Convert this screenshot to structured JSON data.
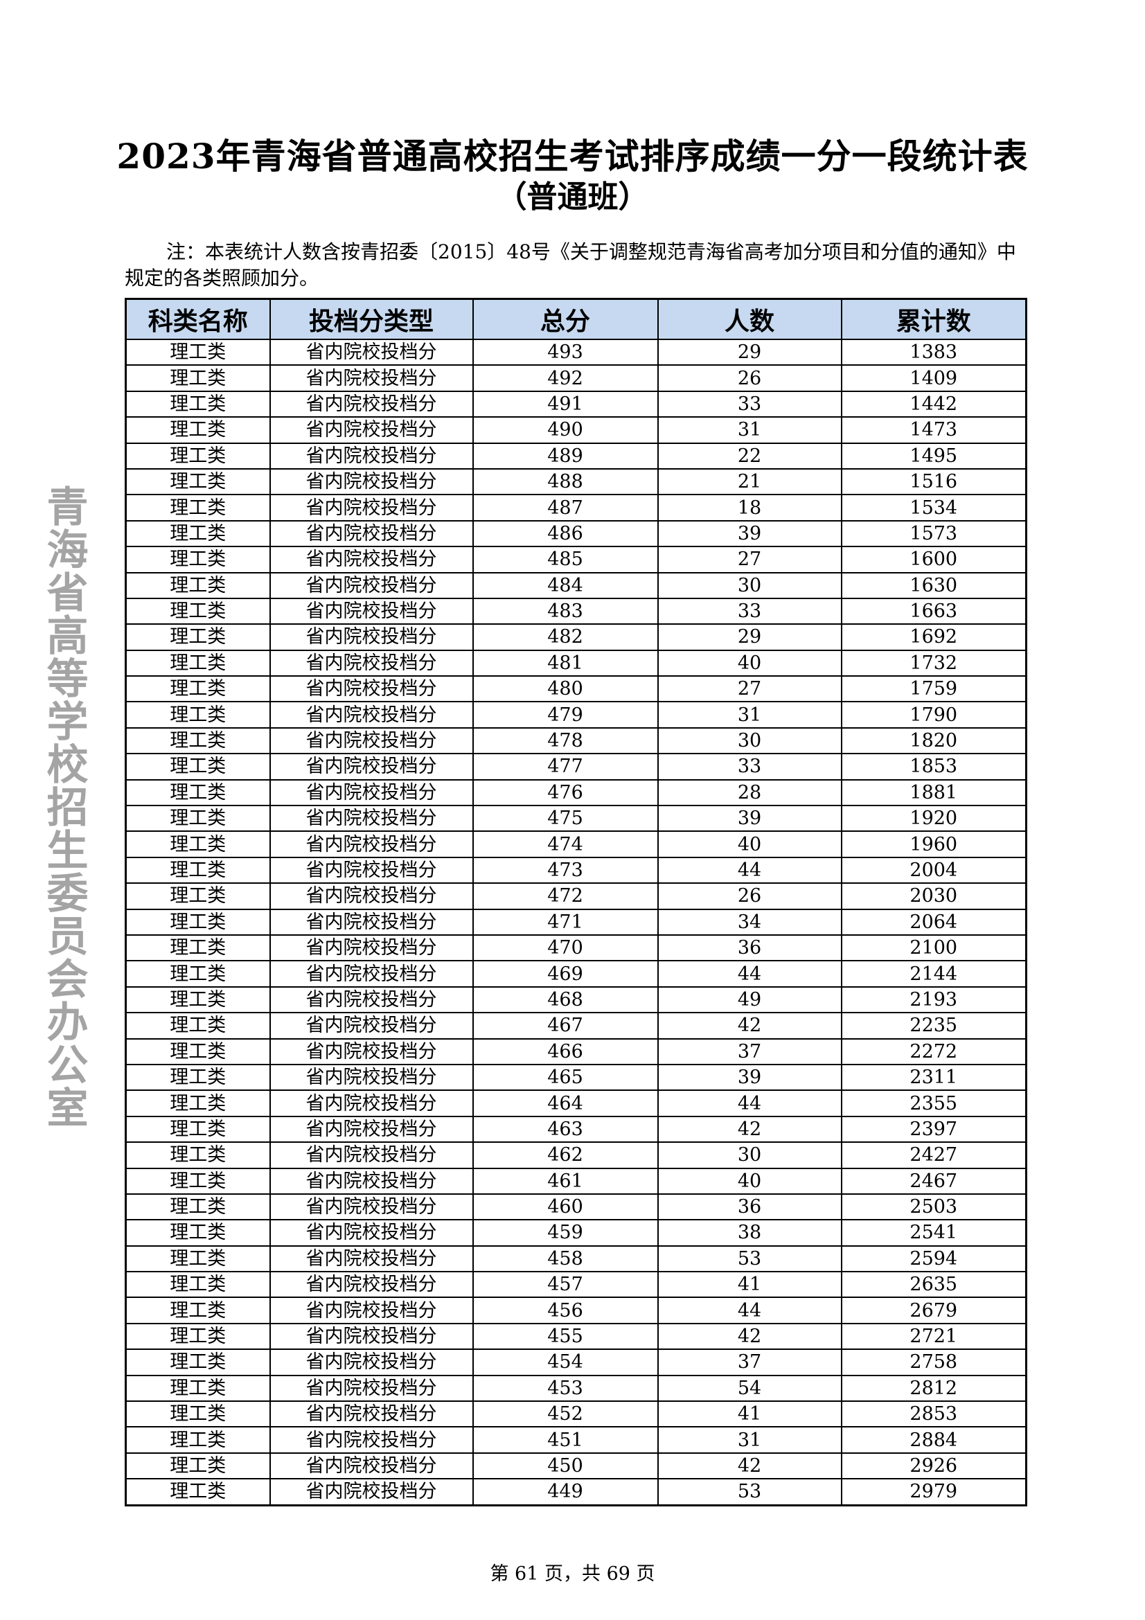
{
  "title": "2023年青海省普通高校招生考试排序成绩一分一段统计表",
  "subtitle": "（普通班）",
  "note": "注：本表统计人数含按青招委〔2015〕48号《关于调整规范青海省高考加分项目和分值的通知》中规定的各类照顾加分。",
  "table": {
    "headers": [
      "科类名称",
      "投档分类型",
      "总分",
      "人数",
      "累计数"
    ],
    "header_bg": "#c6d9f0",
    "rows": [
      [
        "理工类",
        "省内院校投档分",
        "493",
        "29",
        "1383"
      ],
      [
        "理工类",
        "省内院校投档分",
        "492",
        "26",
        "1409"
      ],
      [
        "理工类",
        "省内院校投档分",
        "491",
        "33",
        "1442"
      ],
      [
        "理工类",
        "省内院校投档分",
        "490",
        "31",
        "1473"
      ],
      [
        "理工类",
        "省内院校投档分",
        "489",
        "22",
        "1495"
      ],
      [
        "理工类",
        "省内院校投档分",
        "488",
        "21",
        "1516"
      ],
      [
        "理工类",
        "省内院校投档分",
        "487",
        "18",
        "1534"
      ],
      [
        "理工类",
        "省内院校投档分",
        "486",
        "39",
        "1573"
      ],
      [
        "理工类",
        "省内院校投档分",
        "485",
        "27",
        "1600"
      ],
      [
        "理工类",
        "省内院校投档分",
        "484",
        "30",
        "1630"
      ],
      [
        "理工类",
        "省内院校投档分",
        "483",
        "33",
        "1663"
      ],
      [
        "理工类",
        "省内院校投档分",
        "482",
        "29",
        "1692"
      ],
      [
        "理工类",
        "省内院校投档分",
        "481",
        "40",
        "1732"
      ],
      [
        "理工类",
        "省内院校投档分",
        "480",
        "27",
        "1759"
      ],
      [
        "理工类",
        "省内院校投档分",
        "479",
        "31",
        "1790"
      ],
      [
        "理工类",
        "省内院校投档分",
        "478",
        "30",
        "1820"
      ],
      [
        "理工类",
        "省内院校投档分",
        "477",
        "33",
        "1853"
      ],
      [
        "理工类",
        "省内院校投档分",
        "476",
        "28",
        "1881"
      ],
      [
        "理工类",
        "省内院校投档分",
        "475",
        "39",
        "1920"
      ],
      [
        "理工类",
        "省内院校投档分",
        "474",
        "40",
        "1960"
      ],
      [
        "理工类",
        "省内院校投档分",
        "473",
        "44",
        "2004"
      ],
      [
        "理工类",
        "省内院校投档分",
        "472",
        "26",
        "2030"
      ],
      [
        "理工类",
        "省内院校投档分",
        "471",
        "34",
        "2064"
      ],
      [
        "理工类",
        "省内院校投档分",
        "470",
        "36",
        "2100"
      ],
      [
        "理工类",
        "省内院校投档分",
        "469",
        "44",
        "2144"
      ],
      [
        "理工类",
        "省内院校投档分",
        "468",
        "49",
        "2193"
      ],
      [
        "理工类",
        "省内院校投档分",
        "467",
        "42",
        "2235"
      ],
      [
        "理工类",
        "省内院校投档分",
        "466",
        "37",
        "2272"
      ],
      [
        "理工类",
        "省内院校投档分",
        "465",
        "39",
        "2311"
      ],
      [
        "理工类",
        "省内院校投档分",
        "464",
        "44",
        "2355"
      ],
      [
        "理工类",
        "省内院校投档分",
        "463",
        "42",
        "2397"
      ],
      [
        "理工类",
        "省内院校投档分",
        "462",
        "30",
        "2427"
      ],
      [
        "理工类",
        "省内院校投档分",
        "461",
        "40",
        "2467"
      ],
      [
        "理工类",
        "省内院校投档分",
        "460",
        "36",
        "2503"
      ],
      [
        "理工类",
        "省内院校投档分",
        "459",
        "38",
        "2541"
      ],
      [
        "理工类",
        "省内院校投档分",
        "458",
        "53",
        "2594"
      ],
      [
        "理工类",
        "省内院校投档分",
        "457",
        "41",
        "2635"
      ],
      [
        "理工类",
        "省内院校投档分",
        "456",
        "44",
        "2679"
      ],
      [
        "理工类",
        "省内院校投档分",
        "455",
        "42",
        "2721"
      ],
      [
        "理工类",
        "省内院校投档分",
        "454",
        "37",
        "2758"
      ],
      [
        "理工类",
        "省内院校投档分",
        "453",
        "54",
        "2812"
      ],
      [
        "理工类",
        "省内院校投档分",
        "452",
        "41",
        "2853"
      ],
      [
        "理工类",
        "省内院校投档分",
        "451",
        "31",
        "2884"
      ],
      [
        "理工类",
        "省内院校投档分",
        "450",
        "42",
        "2926"
      ],
      [
        "理工类",
        "省内院校投档分",
        "449",
        "53",
        "2979"
      ]
    ]
  },
  "footer": "第 61 页，共 69 页",
  "watermark": "青海省高等学校招生委员会办公室"
}
